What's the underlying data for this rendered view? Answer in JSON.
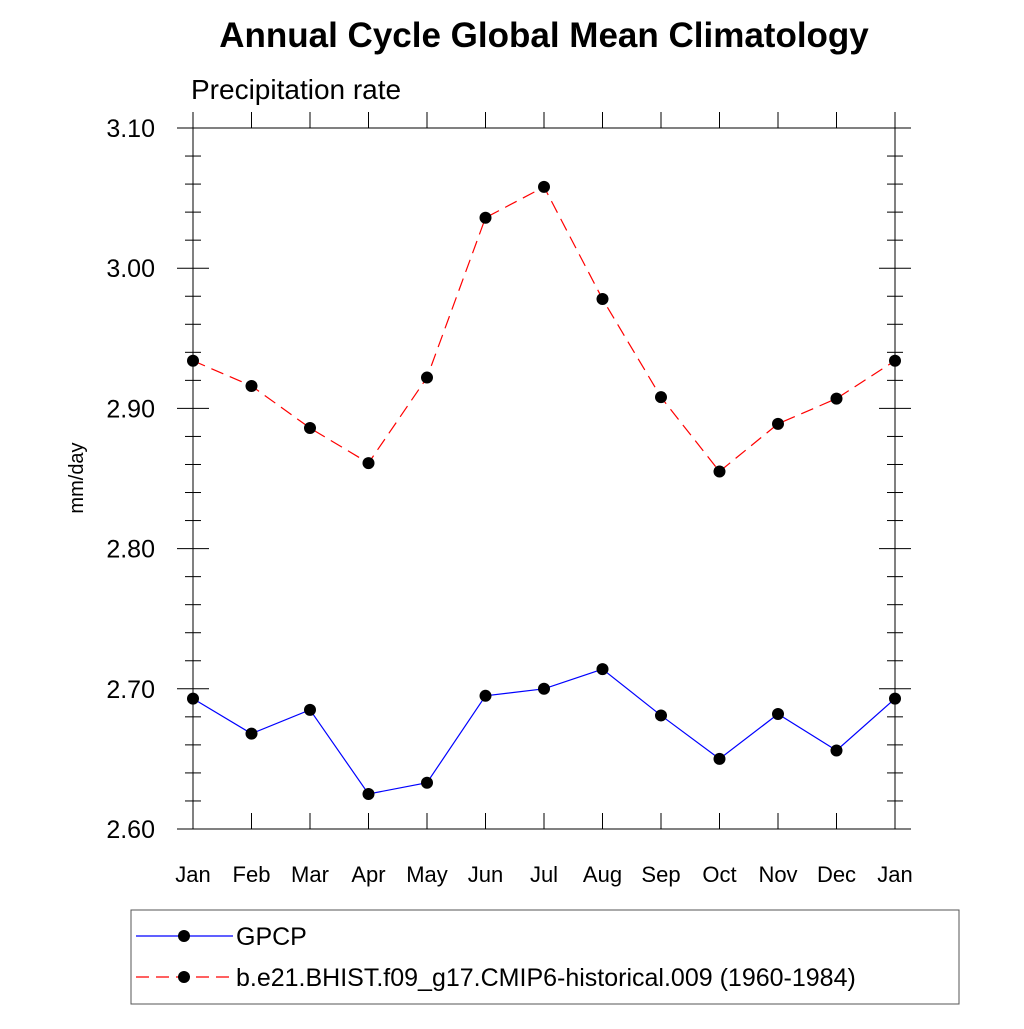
{
  "chart_data": {
    "type": "line",
    "title": "Annual Cycle Global Mean Climatology",
    "subtitle": "Precipitation rate",
    "xlabel": "",
    "ylabel": "mm/day",
    "categories": [
      "Jan",
      "Feb",
      "Mar",
      "Apr",
      "May",
      "Jun",
      "Jul",
      "Aug",
      "Sep",
      "Oct",
      "Nov",
      "Dec",
      "Jan"
    ],
    "ylim": [
      2.6,
      3.1
    ],
    "yticks": [
      "2.60",
      "2.70",
      "2.80",
      "2.90",
      "3.00",
      "3.10"
    ],
    "grid": false,
    "legend_position": "bottom",
    "series": [
      {
        "name": "GPCP",
        "color": "#0000ff",
        "line_style": "solid",
        "marker": "filled-circle",
        "values": [
          2.693,
          2.668,
          2.685,
          2.625,
          2.633,
          2.695,
          2.7,
          2.714,
          2.681,
          2.65,
          2.682,
          2.656,
          2.693
        ]
      },
      {
        "name": "b.e21.BHIST.f09_g17.CMIP6-historical.009 (1960-1984)",
        "color": "#ff0000",
        "line_style": "dashed",
        "marker": "filled-circle",
        "values": [
          2.934,
          2.916,
          2.886,
          2.861,
          2.922,
          3.036,
          3.058,
          2.978,
          2.908,
          2.855,
          2.889,
          2.907,
          2.934
        ]
      }
    ]
  }
}
